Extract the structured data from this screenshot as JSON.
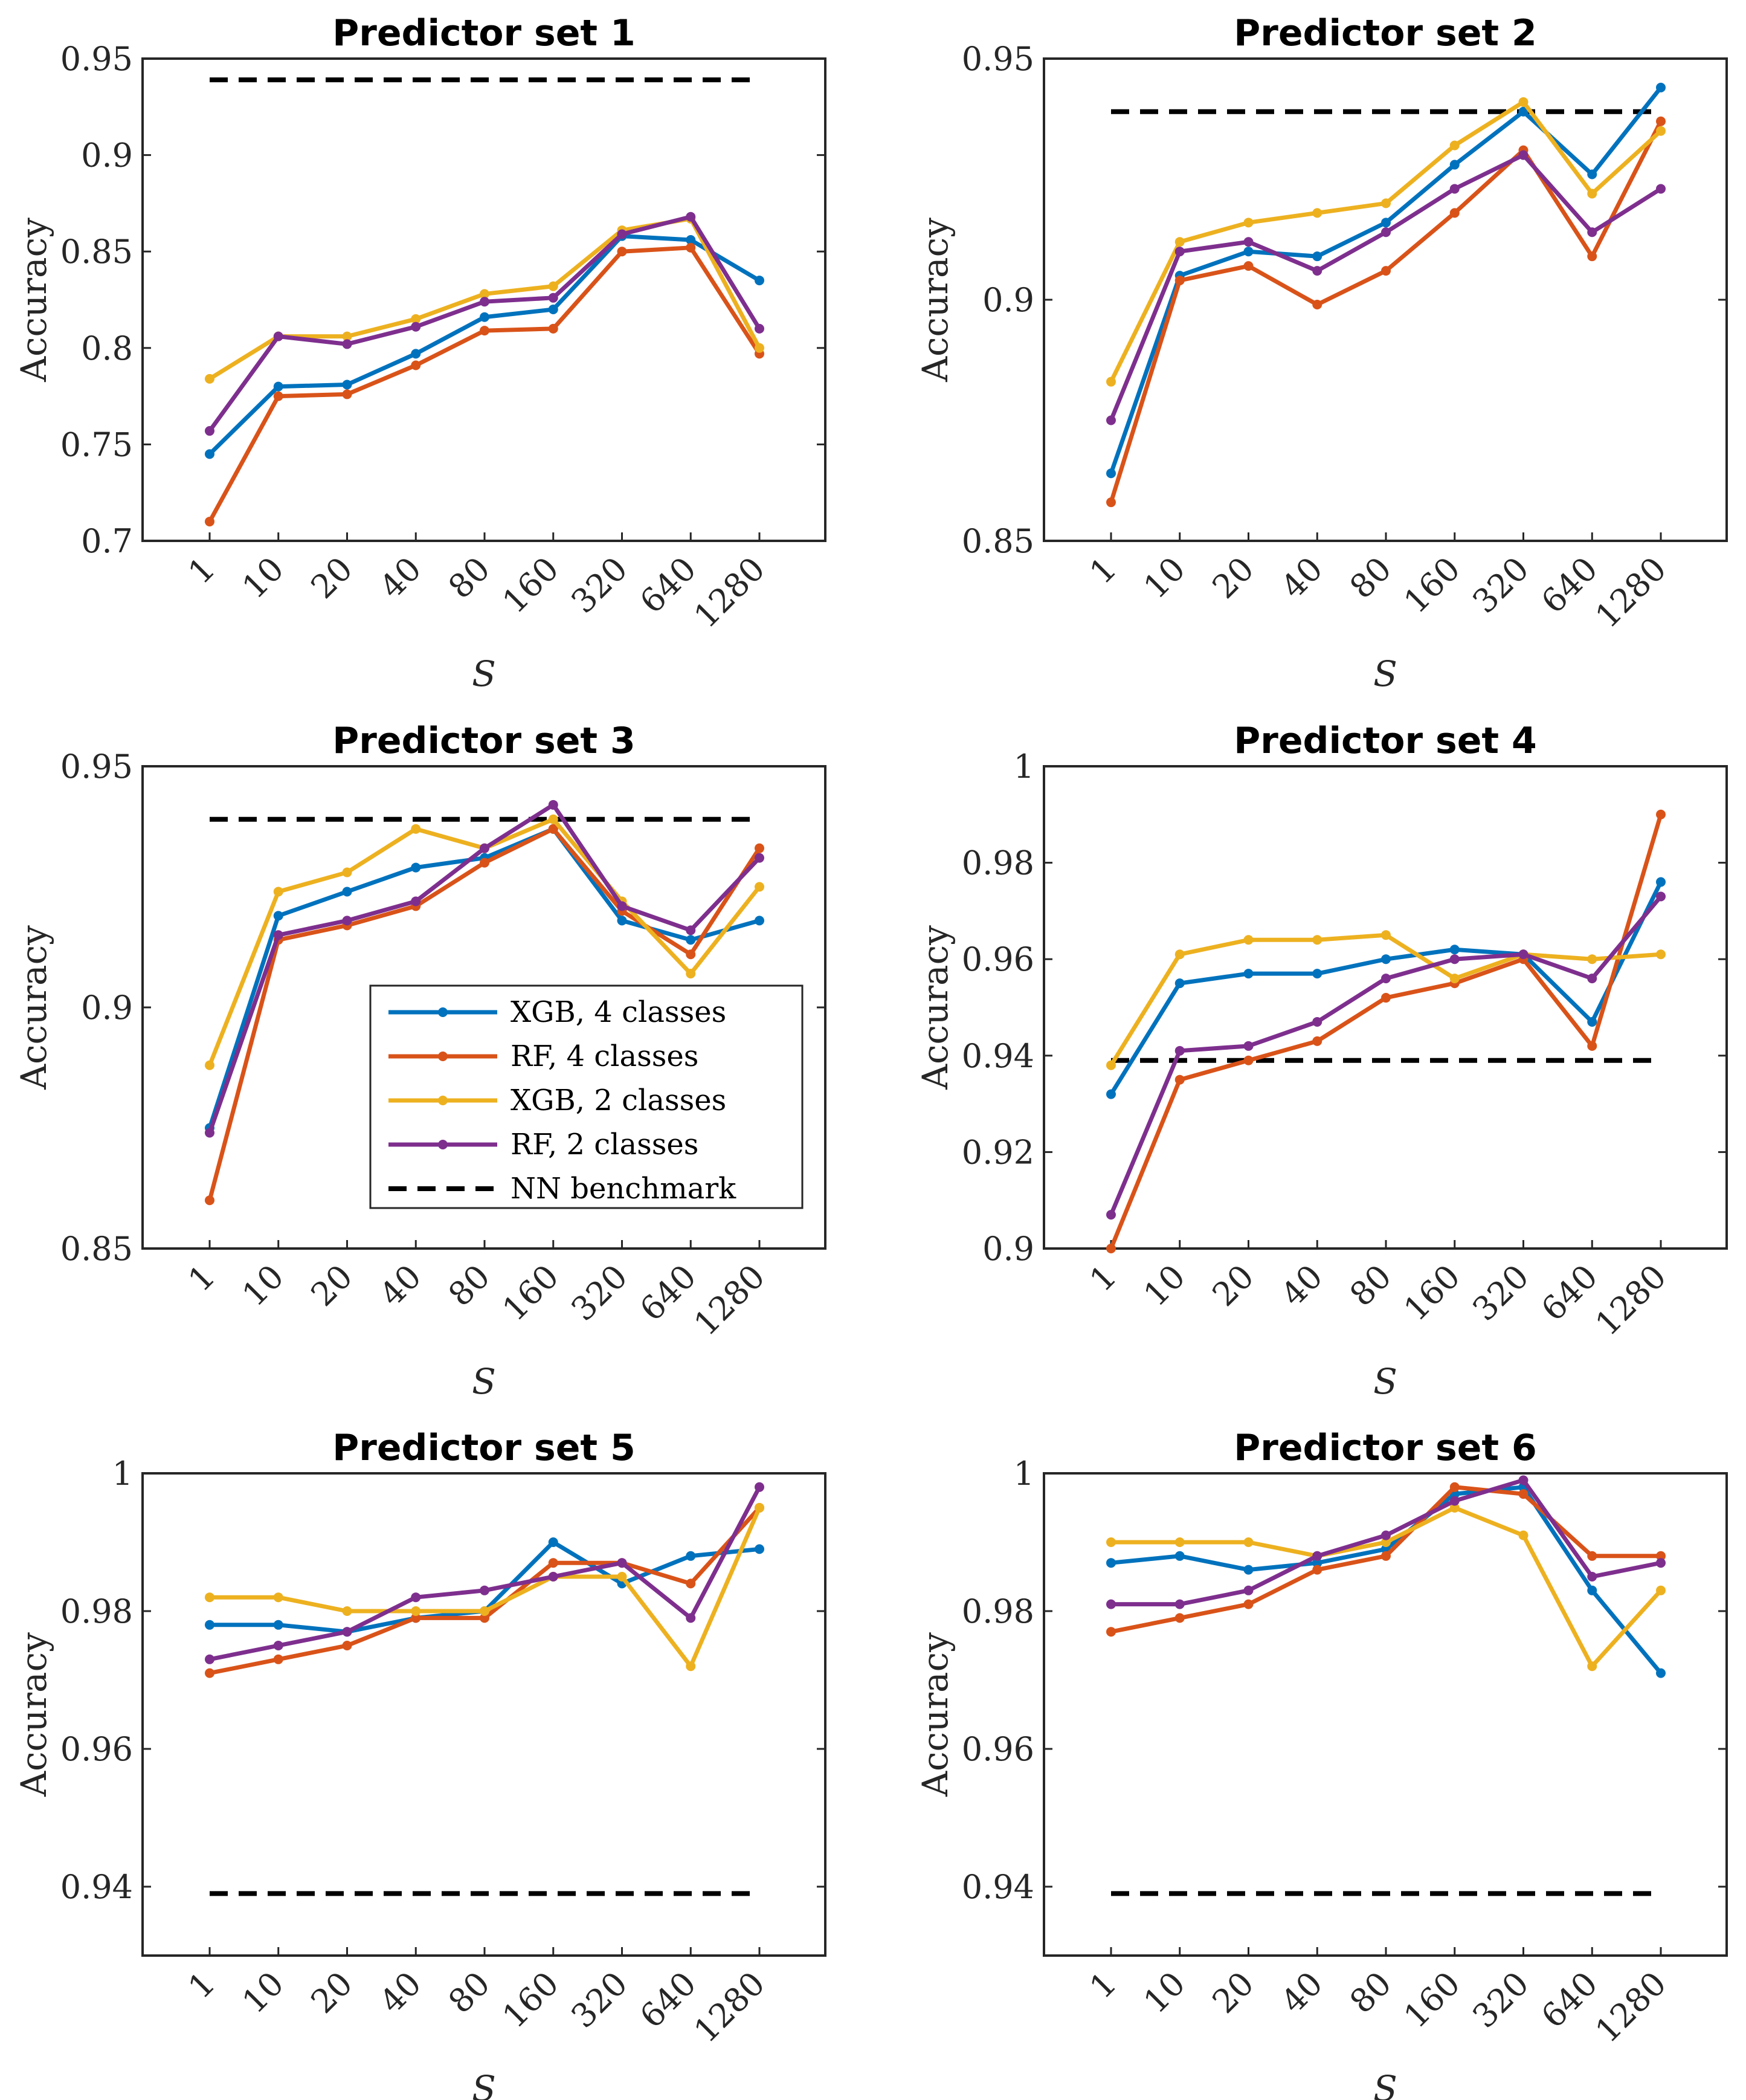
{
  "figure": {
    "series_styles": [
      {
        "name": "XGB, 4 classes",
        "color": "#0072BD"
      },
      {
        "name": "RF, 4 classes",
        "color": "#D95319"
      },
      {
        "name": "XGB, 2 classes",
        "color": "#EDB120"
      },
      {
        "name": "RF, 2 classes",
        "color": "#7E2F8E"
      }
    ],
    "benchmark_style": {
      "name": "NN benchmark",
      "color": "#000000",
      "dash": "dashed"
    }
  },
  "chart_data": [
    {
      "type": "line",
      "title": "Predictor set 1",
      "xlabel": "S",
      "ylabel": "Accuracy",
      "categories": [
        "1",
        "10",
        "20",
        "40",
        "80",
        "160",
        "320",
        "640",
        "1280"
      ],
      "ylim": [
        0.7,
        0.95
      ],
      "yticks": [
        0.7,
        0.75,
        0.8,
        0.85,
        0.9,
        0.95
      ],
      "ytick_labels": [
        "0.7",
        "0.75",
        "0.8",
        "0.85",
        "0.9",
        "0.95"
      ],
      "benchmark": 0.939,
      "legend": null,
      "series": [
        {
          "name": "XGB, 4 classes",
          "values": [
            0.745,
            0.78,
            0.781,
            0.797,
            0.816,
            0.82,
            0.858,
            0.856,
            0.835
          ]
        },
        {
          "name": "RF, 4 classes",
          "values": [
            0.71,
            0.775,
            0.776,
            0.791,
            0.809,
            0.81,
            0.85,
            0.852,
            0.797
          ]
        },
        {
          "name": "XGB, 2 classes",
          "values": [
            0.784,
            0.806,
            0.806,
            0.815,
            0.828,
            0.832,
            0.861,
            0.867,
            0.8
          ]
        },
        {
          "name": "RF, 2 classes",
          "values": [
            0.757,
            0.806,
            0.802,
            0.811,
            0.824,
            0.826,
            0.859,
            0.868,
            0.81
          ]
        }
      ]
    },
    {
      "type": "line",
      "title": "Predictor set 2",
      "xlabel": "S",
      "ylabel": "Accuracy",
      "categories": [
        "1",
        "10",
        "20",
        "40",
        "80",
        "160",
        "320",
        "640",
        "1280"
      ],
      "ylim": [
        0.85,
        0.95
      ],
      "yticks": [
        0.85,
        0.9,
        0.95
      ],
      "ytick_labels": [
        "0.85",
        "0.9",
        "0.95"
      ],
      "benchmark": 0.939,
      "legend": null,
      "series": [
        {
          "name": "XGB, 4 classes",
          "values": [
            0.864,
            0.905,
            0.91,
            0.909,
            0.916,
            0.928,
            0.939,
            0.926,
            0.944
          ]
        },
        {
          "name": "RF, 4 classes",
          "values": [
            0.858,
            0.904,
            0.907,
            0.899,
            0.906,
            0.918,
            0.931,
            0.909,
            0.937
          ]
        },
        {
          "name": "XGB, 2 classes",
          "values": [
            0.883,
            0.912,
            0.916,
            0.918,
            0.92,
            0.932,
            0.941,
            0.922,
            0.935
          ]
        },
        {
          "name": "RF, 2 classes",
          "values": [
            0.875,
            0.91,
            0.912,
            0.906,
            0.914,
            0.923,
            0.93,
            0.914,
            0.923
          ]
        }
      ]
    },
    {
      "type": "line",
      "title": "Predictor set 3",
      "xlabel": "S",
      "ylabel": "Accuracy",
      "categories": [
        "1",
        "10",
        "20",
        "40",
        "80",
        "160",
        "320",
        "640",
        "1280"
      ],
      "ylim": [
        0.85,
        0.95
      ],
      "yticks": [
        0.85,
        0.9,
        0.95
      ],
      "ytick_labels": [
        "0.85",
        "0.9",
        "0.95"
      ],
      "benchmark": 0.939,
      "legend": {
        "position": "lower-right",
        "entries": [
          "XGB, 4 classes",
          "RF, 4 classes",
          "XGB, 2 classes",
          "RF, 2 classes",
          "NN benchmark"
        ]
      },
      "series": [
        {
          "name": "XGB, 4 classes",
          "values": [
            0.875,
            0.919,
            0.924,
            0.929,
            0.931,
            0.937,
            0.918,
            0.914,
            0.918
          ]
        },
        {
          "name": "RF, 4 classes",
          "values": [
            0.86,
            0.914,
            0.917,
            0.921,
            0.93,
            0.937,
            0.92,
            0.911,
            0.933
          ]
        },
        {
          "name": "XGB, 2 classes",
          "values": [
            0.888,
            0.924,
            0.928,
            0.937,
            0.933,
            0.939,
            0.922,
            0.907,
            0.925
          ]
        },
        {
          "name": "RF, 2 classes",
          "values": [
            0.874,
            0.915,
            0.918,
            0.922,
            0.933,
            0.942,
            0.921,
            0.916,
            0.931
          ]
        }
      ]
    },
    {
      "type": "line",
      "title": "Predictor set 4",
      "xlabel": "S",
      "ylabel": "Accuracy",
      "categories": [
        "1",
        "10",
        "20",
        "40",
        "80",
        "160",
        "320",
        "640",
        "1280"
      ],
      "ylim": [
        0.9,
        1.0
      ],
      "yticks": [
        0.9,
        0.92,
        0.94,
        0.96,
        0.98,
        1.0
      ],
      "ytick_labels": [
        "0.9",
        "0.92",
        "0.94",
        "0.96",
        "0.98",
        "1"
      ],
      "benchmark": 0.939,
      "legend": null,
      "series": [
        {
          "name": "XGB, 4 classes",
          "values": [
            0.932,
            0.955,
            0.957,
            0.957,
            0.96,
            0.962,
            0.961,
            0.947,
            0.976
          ]
        },
        {
          "name": "RF, 4 classes",
          "values": [
            0.9,
            0.935,
            0.939,
            0.943,
            0.952,
            0.955,
            0.96,
            0.942,
            0.99
          ]
        },
        {
          "name": "XGB, 2 classes",
          "values": [
            0.938,
            0.961,
            0.964,
            0.964,
            0.965,
            0.956,
            0.961,
            0.96,
            0.961
          ]
        },
        {
          "name": "RF, 2 classes",
          "values": [
            0.907,
            0.941,
            0.942,
            0.947,
            0.956,
            0.96,
            0.961,
            0.956,
            0.973
          ]
        }
      ]
    },
    {
      "type": "line",
      "title": "Predictor set 5",
      "xlabel": "S",
      "ylabel": "Accuracy",
      "categories": [
        "1",
        "10",
        "20",
        "40",
        "80",
        "160",
        "320",
        "640",
        "1280"
      ],
      "ylim": [
        0.93,
        1.0
      ],
      "yticks": [
        0.94,
        0.96,
        0.98,
        1.0
      ],
      "ytick_labels": [
        "0.94",
        "0.96",
        "0.98",
        "1"
      ],
      "benchmark": 0.939,
      "legend": null,
      "series": [
        {
          "name": "XGB, 4 classes",
          "values": [
            0.978,
            0.978,
            0.977,
            0.979,
            0.98,
            0.99,
            0.984,
            0.988,
            0.989
          ]
        },
        {
          "name": "RF, 4 classes",
          "values": [
            0.971,
            0.973,
            0.975,
            0.979,
            0.979,
            0.987,
            0.987,
            0.984,
            0.995
          ]
        },
        {
          "name": "XGB, 2 classes",
          "values": [
            0.982,
            0.982,
            0.98,
            0.98,
            0.98,
            0.985,
            0.985,
            0.972,
            0.995
          ]
        },
        {
          "name": "RF, 2 classes",
          "values": [
            0.973,
            0.975,
            0.977,
            0.982,
            0.983,
            0.985,
            0.987,
            0.979,
            0.998
          ]
        }
      ]
    },
    {
      "type": "line",
      "title": "Predictor set 6",
      "xlabel": "S",
      "ylabel": "Accuracy",
      "categories": [
        "1",
        "10",
        "20",
        "40",
        "80",
        "160",
        "320",
        "640",
        "1280"
      ],
      "ylim": [
        0.93,
        1.0
      ],
      "yticks": [
        0.94,
        0.96,
        0.98,
        1.0
      ],
      "ytick_labels": [
        "0.94",
        "0.96",
        "0.98",
        "1"
      ],
      "benchmark": 0.939,
      "legend": null,
      "series": [
        {
          "name": "XGB, 4 classes",
          "values": [
            0.987,
            0.988,
            0.986,
            0.987,
            0.989,
            0.997,
            0.998,
            0.983,
            0.971
          ]
        },
        {
          "name": "RF, 4 classes",
          "values": [
            0.977,
            0.979,
            0.981,
            0.986,
            0.988,
            0.998,
            0.997,
            0.988,
            0.988
          ]
        },
        {
          "name": "XGB, 2 classes",
          "values": [
            0.99,
            0.99,
            0.99,
            0.988,
            0.99,
            0.995,
            0.991,
            0.972,
            0.983
          ]
        },
        {
          "name": "RF, 2 classes",
          "values": [
            0.981,
            0.981,
            0.983,
            0.988,
            0.991,
            0.996,
            0.999,
            0.985,
            0.987
          ]
        }
      ]
    }
  ]
}
